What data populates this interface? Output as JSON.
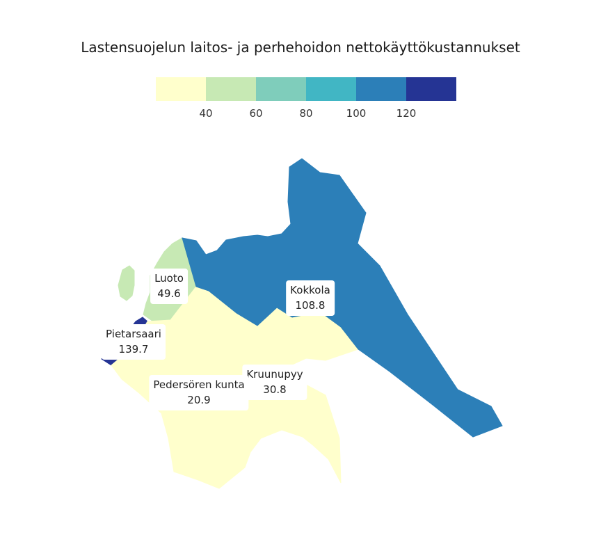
{
  "title": "Lastensuojelun laitos- ja perhehoidon nettokäyttökustannukset",
  "legend": {
    "colors": [
      "#ffffcc",
      "#c7e9b4",
      "#7fcdbb",
      "#41b6c4",
      "#2c7fb8",
      "#253494"
    ],
    "ticks": [
      "40",
      "60",
      "80",
      "100",
      "120"
    ]
  },
  "regions": [
    {
      "name": "Kokkola",
      "value": "108.8",
      "color": "#2c7fb8"
    },
    {
      "name": "Luoto",
      "value": "49.6",
      "color": "#c7e9b4"
    },
    {
      "name": "Pietarsaari",
      "value": "139.7",
      "color": "#253494"
    },
    {
      "name": "Pedersören kunta",
      "value": "20.9",
      "color": "#ffffcc"
    },
    {
      "name": "Kruunupyy",
      "value": "30.8",
      "color": "#ffffcc"
    }
  ]
}
